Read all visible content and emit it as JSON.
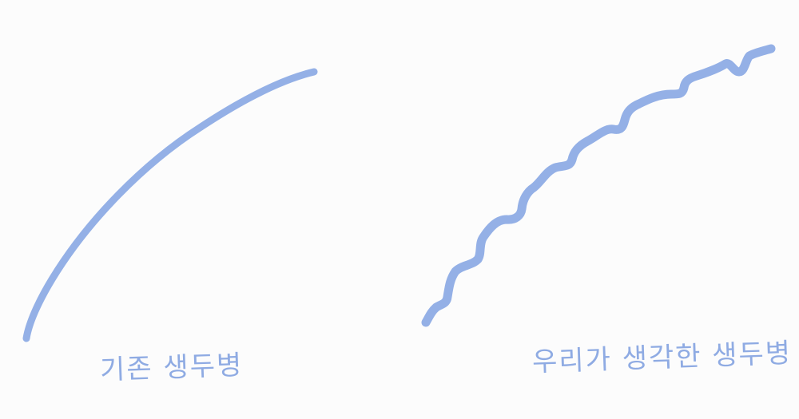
{
  "colors": {
    "background": "#fcfcfc",
    "stroke": "#94b0e6",
    "text": "#8fabe3"
  },
  "labels": {
    "left": "기존 생두병",
    "right": "우리가 생각한 생두병"
  }
}
